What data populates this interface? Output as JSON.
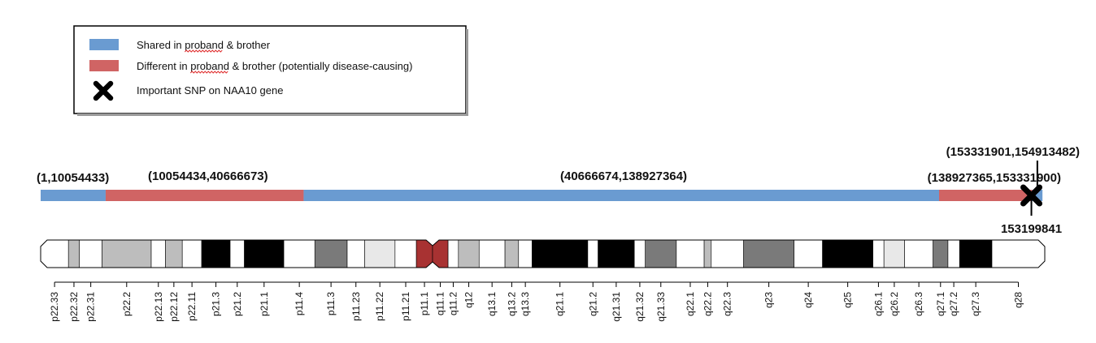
{
  "legend": {
    "items": [
      {
        "prefix": "Shared in ",
        "underlined": "proband",
        "suffix": " & brother",
        "color": "#6a9bd1",
        "marker": "bar"
      },
      {
        "prefix": "Different in ",
        "underlined": "proband",
        "suffix": " & brother (potentially disease-causing)",
        "color": "#d06464",
        "marker": "bar"
      },
      {
        "prefix": "Important SNP on NAA10 gene",
        "underlined": "",
        "suffix": "",
        "color": "#000000",
        "marker": "cross-icon"
      }
    ]
  },
  "colors": {
    "shared": "#6a9bd1",
    "different": "#d06464",
    "squiggle": "#e03030",
    "gpos100": "#000000",
    "gpos75": "#7a7a7a",
    "gpos50": "#bdbdbd",
    "gpos25": "#e8e8e8",
    "gneg": "#ffffff",
    "centromere": "#a83232"
  },
  "chromosome_length": 155270560,
  "regions": [
    {
      "label": "(1,10054433)",
      "start": 1,
      "end": 10054433,
      "status": "shared"
    },
    {
      "label": "(10054434,40666673)",
      "start": 10054434,
      "end": 40666673,
      "status": "different"
    },
    {
      "label": "(40666674,138927364)",
      "start": 40666674,
      "end": 138927364,
      "status": "shared"
    },
    {
      "label": "(138927365,153331900)",
      "start": 138927365,
      "end": 153331900,
      "status": "different"
    },
    {
      "label": "(153331901,154913482)",
      "start": 153331901,
      "end": 154913482,
      "status": "shared"
    }
  ],
  "snp": {
    "position": 153199841,
    "label": "153199841"
  },
  "bands": [
    {
      "name": "p22.33",
      "start": 0,
      "end": 4300000,
      "stain": "gneg"
    },
    {
      "name": "p22.32",
      "start": 4300000,
      "end": 6000000,
      "stain": "gpos50"
    },
    {
      "name": "p22.31",
      "start": 6000000,
      "end": 9500000,
      "stain": "gneg"
    },
    {
      "name": "p22.2",
      "start": 9500000,
      "end": 17100000,
      "stain": "gpos50"
    },
    {
      "name": "p22.13",
      "start": 17100000,
      "end": 19300000,
      "stain": "gneg"
    },
    {
      "name": "p22.12",
      "start": 19300000,
      "end": 21900000,
      "stain": "gpos50"
    },
    {
      "name": "p22.11",
      "start": 21900000,
      "end": 24900000,
      "stain": "gneg"
    },
    {
      "name": "p21.3",
      "start": 24900000,
      "end": 29300000,
      "stain": "gpos100"
    },
    {
      "name": "p21.2",
      "start": 29300000,
      "end": 31500000,
      "stain": "gneg"
    },
    {
      "name": "p21.1",
      "start": 31500000,
      "end": 37600000,
      "stain": "gpos100"
    },
    {
      "name": "p11.4",
      "start": 37600000,
      "end": 42400000,
      "stain": "gneg"
    },
    {
      "name": "p11.3",
      "start": 42400000,
      "end": 47400000,
      "stain": "gpos75"
    },
    {
      "name": "p11.23",
      "start": 47400000,
      "end": 50100000,
      "stain": "gneg"
    },
    {
      "name": "p11.22",
      "start": 50100000,
      "end": 54800000,
      "stain": "gpos25"
    },
    {
      "name": "p11.21",
      "start": 54800000,
      "end": 58100000,
      "stain": "gneg"
    },
    {
      "name": "p11.1",
      "start": 58100000,
      "end": 60600000,
      "stain": "acen"
    },
    {
      "name": "q11.1",
      "start": 60600000,
      "end": 63000000,
      "stain": "acen"
    },
    {
      "name": "q11.2",
      "start": 63000000,
      "end": 64600000,
      "stain": "gneg"
    },
    {
      "name": "q12",
      "start": 64600000,
      "end": 67800000,
      "stain": "gpos50"
    },
    {
      "name": "q13.1",
      "start": 67800000,
      "end": 71800000,
      "stain": "gneg"
    },
    {
      "name": "q13.2",
      "start": 71800000,
      "end": 73900000,
      "stain": "gpos50"
    },
    {
      "name": "q13.3",
      "start": 73900000,
      "end": 76000000,
      "stain": "gneg"
    },
    {
      "name": "q21.1",
      "start": 76000000,
      "end": 84600000,
      "stain": "gpos100"
    },
    {
      "name": "q21.2",
      "start": 84600000,
      "end": 86200000,
      "stain": "gneg"
    },
    {
      "name": "q21.31",
      "start": 86200000,
      "end": 91800000,
      "stain": "gpos100"
    },
    {
      "name": "q21.32",
      "start": 91800000,
      "end": 93500000,
      "stain": "gneg"
    },
    {
      "name": "q21.33",
      "start": 93500000,
      "end": 98300000,
      "stain": "gpos75"
    },
    {
      "name": "q22.1",
      "start": 98300000,
      "end": 102600000,
      "stain": "gneg"
    },
    {
      "name": "q22.2",
      "start": 102600000,
      "end": 103700000,
      "stain": "gpos50"
    },
    {
      "name": "q22.3",
      "start": 103700000,
      "end": 108700000,
      "stain": "gneg"
    },
    {
      "name": "q23",
      "start": 108700000,
      "end": 116500000,
      "stain": "gpos75"
    },
    {
      "name": "q24",
      "start": 116500000,
      "end": 120900000,
      "stain": "gneg"
    },
    {
      "name": "q25",
      "start": 120900000,
      "end": 128700000,
      "stain": "gpos100"
    },
    {
      "name": "q26.1",
      "start": 128700000,
      "end": 130400000,
      "stain": "gneg"
    },
    {
      "name": "q26.2",
      "start": 130400000,
      "end": 133600000,
      "stain": "gpos25"
    },
    {
      "name": "q26.3",
      "start": 133600000,
      "end": 138000000,
      "stain": "gneg"
    },
    {
      "name": "q27.1",
      "start": 138000000,
      "end": 140300000,
      "stain": "gpos75"
    },
    {
      "name": "q27.2",
      "start": 140300000,
      "end": 142100000,
      "stain": "gneg"
    },
    {
      "name": "q27.3",
      "start": 142100000,
      "end": 147100000,
      "stain": "gpos100"
    },
    {
      "name": "q28",
      "start": 147100000,
      "end": 155270560,
      "stain": "gneg"
    }
  ]
}
